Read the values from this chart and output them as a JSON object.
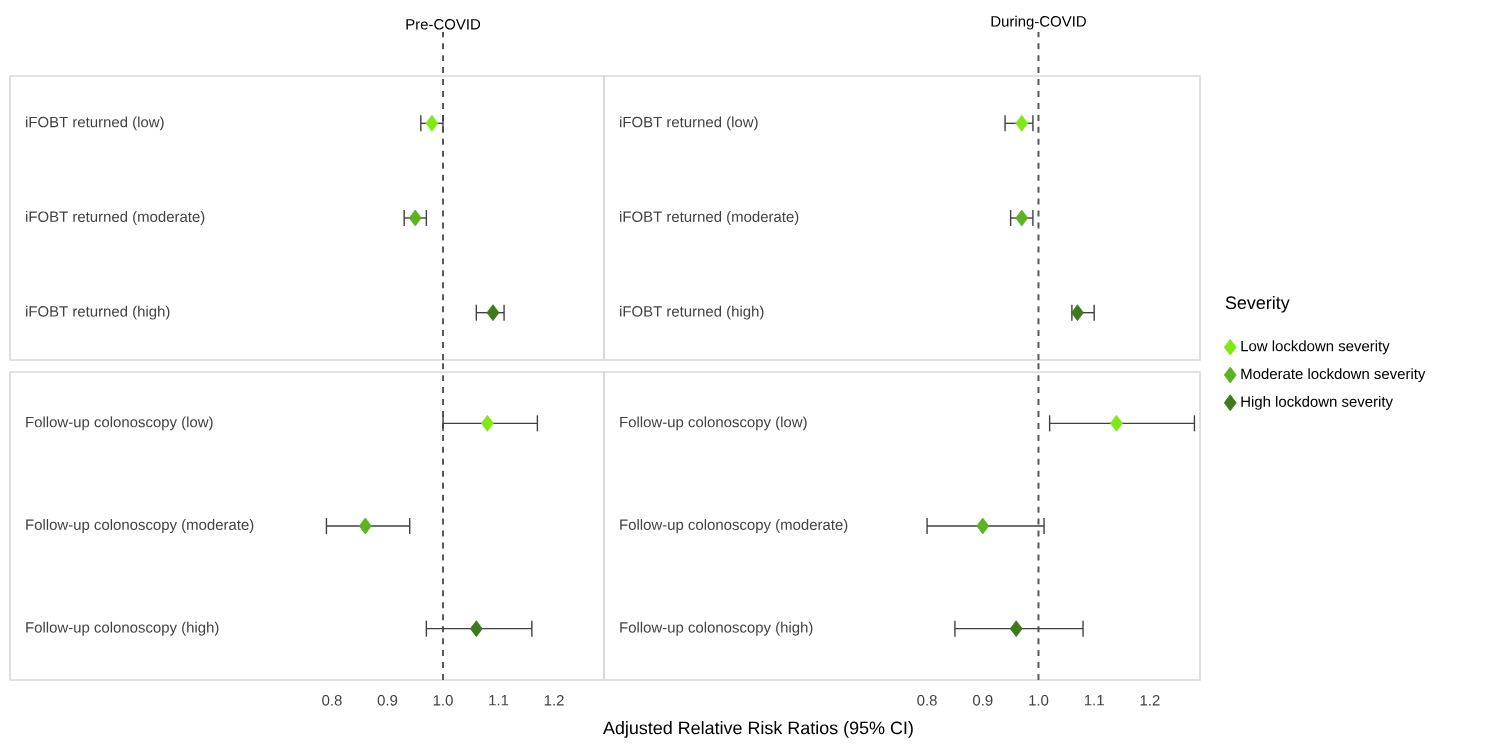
{
  "chart_data": [
    {
      "type": "scatter",
      "orientation": "horizontal",
      "categories": [
        "iFOBT returned (low)",
        "iFOBT returned (moderate)",
        "iFOBT returned (high)"
      ],
      "xlim": [
        0.22,
        1.29
      ],
      "tick_labels": "y",
      "marker": "diamond",
      "ref_lines": [
        {
          "axis": "x",
          "value": 1,
          "label": "Pre-COVID",
          "line_style": "dashed"
        }
      ],
      "series": [
        {
          "color": "#7fe817",
          "values": [
            0.98,
            null,
            null
          ],
          "errors": [
            [
              0.96,
              1.0
            ],
            null,
            null
          ]
        },
        {
          "color": "#5ab31f",
          "values": [
            null,
            0.95,
            null
          ],
          "errors": [
            null,
            [
              0.93,
              0.97
            ],
            null
          ]
        },
        {
          "color": "#3d7a1a",
          "values": [
            null,
            null,
            1.09
          ],
          "errors": [
            null,
            null,
            [
              1.06,
              1.11
            ]
          ]
        }
      ]
    },
    {
      "type": "scatter",
      "orientation": "horizontal",
      "categories": [
        "iFOBT returned (low)",
        "iFOBT returned (moderate)",
        "iFOBT returned (high)"
      ],
      "xlim": [
        0.22,
        1.29
      ],
      "tick_labels": "y",
      "marker": "diamond",
      "ref_lines": [
        {
          "axis": "x",
          "value": 1,
          "label": "During-COVID",
          "line_style": "dashed"
        }
      ],
      "series": [
        {
          "color": "#7fe817",
          "values": [
            0.97,
            null,
            null
          ],
          "errors": [
            [
              0.94,
              0.99
            ],
            null,
            null
          ]
        },
        {
          "color": "#5ab31f",
          "values": [
            null,
            0.97,
            null
          ],
          "errors": [
            null,
            [
              0.95,
              0.99
            ],
            null
          ]
        },
        {
          "color": "#3d7a1a",
          "values": [
            null,
            null,
            1.07
          ],
          "errors": [
            null,
            null,
            [
              1.06,
              1.1
            ]
          ]
        }
      ]
    },
    {
      "type": "scatter",
      "orientation": "horizontal",
      "categories": [
        "Follow-up colonoscopy (low)",
        "Follow-up colonoscopy (moderate)",
        "Follow-up colonoscopy (high)"
      ],
      "xlim": [
        0.22,
        1.29
      ],
      "xticks": [
        0.8,
        0.9,
        {
          "value": 1,
          "label": "1.0"
        },
        1.1,
        1.2
      ],
      "xlabel": "Adjusted Relative Risk Ratios (95% CI)",
      "marker": "diamond",
      "ref_lines": [
        {
          "axis": "x",
          "value": 1,
          "line_style": "dashed"
        }
      ],
      "series": [
        {
          "color": "#7fe817",
          "values": [
            1.08,
            null,
            null
          ],
          "errors": [
            [
              1.0,
              1.17
            ],
            null,
            null
          ]
        },
        {
          "color": "#5ab31f",
          "values": [
            null,
            0.86,
            null
          ],
          "errors": [
            null,
            [
              0.79,
              0.94
            ],
            null
          ]
        },
        {
          "color": "#3d7a1a",
          "values": [
            null,
            null,
            1.06
          ],
          "errors": [
            null,
            null,
            [
              0.97,
              1.16
            ]
          ]
        }
      ]
    },
    {
      "type": "scatter",
      "orientation": "horizontal",
      "categories": [
        "Follow-up colonoscopy (low)",
        "Follow-up colonoscopy (moderate)",
        "Follow-up colonoscopy (high)"
      ],
      "xlim": [
        0.22,
        1.29
      ],
      "xticks": [
        0.8,
        0.9,
        {
          "value": 1,
          "label": "1.0"
        },
        1.1,
        1.2
      ],
      "marker": "diamond",
      "legend": "right",
      "legend_title": "Severity",
      "ref_lines": [
        {
          "axis": "x",
          "value": 1,
          "line_style": "dashed"
        }
      ],
      "series": [
        {
          "name": "Low lockdown severity",
          "color": "#7fe817",
          "values": [
            1.14,
            null,
            null
          ],
          "errors": [
            [
              1.02,
              1.28
            ],
            null,
            null
          ]
        },
        {
          "name": "Moderate lockdown severity",
          "color": "#5ab31f",
          "values": [
            null,
            0.9,
            null
          ],
          "errors": [
            null,
            [
              0.8,
              1.01
            ],
            null
          ]
        },
        {
          "name": "High lockdown severity",
          "color": "#3d7a1a",
          "values": [
            null,
            null,
            0.96
          ],
          "errors": [
            null,
            null,
            [
              0.85,
              1.08
            ]
          ]
        }
      ]
    }
  ]
}
